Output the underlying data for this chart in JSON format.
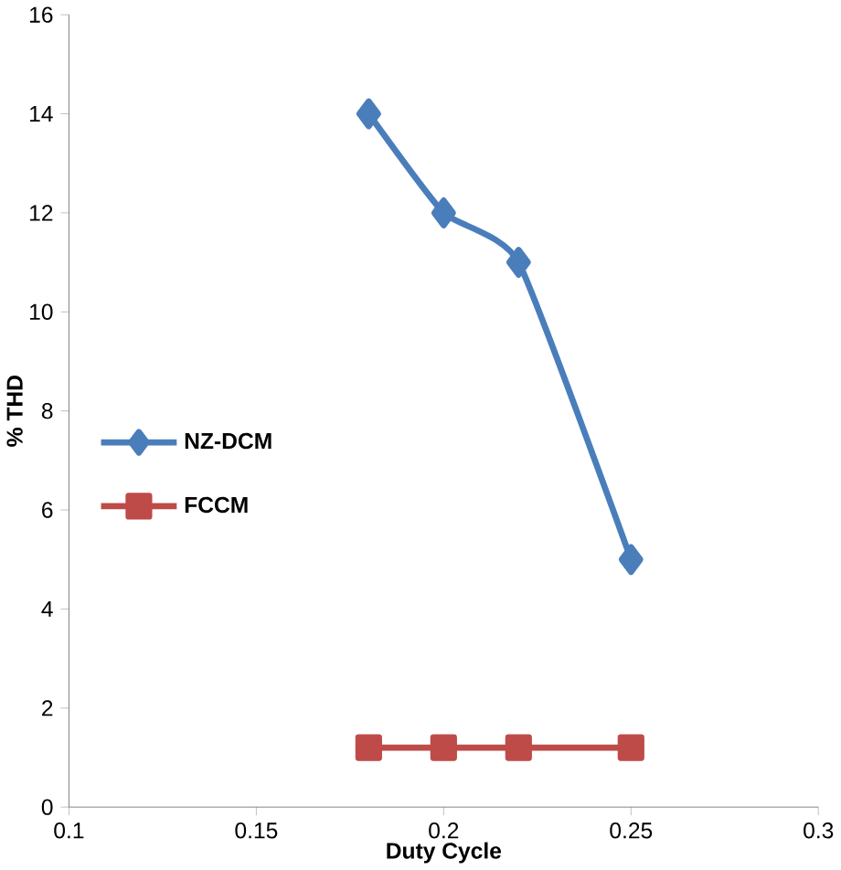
{
  "chart_data": {
    "type": "line",
    "xlabel": "Duty Cycle",
    "ylabel": "% THD",
    "x": [
      0.18,
      0.2,
      0.22,
      0.25
    ],
    "series": [
      {
        "name": "NZ-DCM",
        "color": "#4a7ebb",
        "marker": "diamond",
        "values": [
          14,
          12,
          11,
          5
        ]
      },
      {
        "name": "FCCM",
        "color": "#be4b48",
        "marker": "square",
        "values": [
          1.2,
          1.2,
          1.2,
          1.2
        ]
      }
    ],
    "xlim": [
      0.1,
      0.3
    ],
    "xticks": [
      0.1,
      0.15,
      0.2,
      0.25,
      0.3
    ],
    "ylim": [
      0,
      16
    ],
    "yticks": [
      0,
      2,
      4,
      6,
      8,
      10,
      12,
      14,
      16
    ],
    "legend": "left",
    "grid": false
  }
}
